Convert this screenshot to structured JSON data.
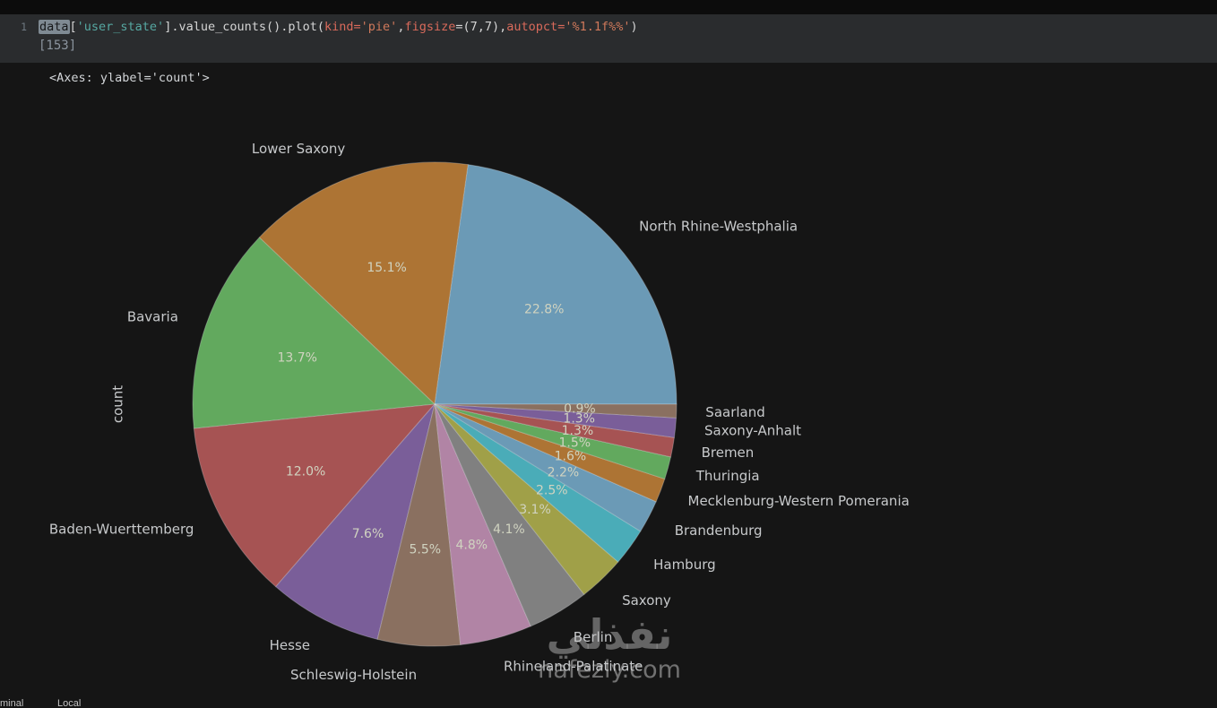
{
  "code_cell": {
    "line_number": "1",
    "execution_count": "[153]",
    "tokens": [
      {
        "text": "data",
        "cls": "tok-selected"
      },
      {
        "text": "[",
        "cls": "tok-plain"
      },
      {
        "text": "'user_state'",
        "cls": "tok-str-teal"
      },
      {
        "text": "].value_counts().plot(",
        "cls": "tok-plain"
      },
      {
        "text": "kind",
        "cls": "tok-kwarg"
      },
      {
        "text": "=",
        "cls": "tok-kwarg"
      },
      {
        "text": "'pie'",
        "cls": "tok-str"
      },
      {
        "text": ",",
        "cls": "tok-plain"
      },
      {
        "text": "figsize",
        "cls": "tok-kwarg"
      },
      {
        "text": "=(",
        "cls": "tok-plain"
      },
      {
        "text": "7,7",
        "cls": "tok-num"
      },
      {
        "text": "),",
        "cls": "tok-plain"
      },
      {
        "text": "autopct",
        "cls": "tok-kwarg"
      },
      {
        "text": "=",
        "cls": "tok-kwarg"
      },
      {
        "text": "'%1.1f%%'",
        "cls": "tok-str"
      },
      {
        "text": ")",
        "cls": "tok-plain"
      }
    ]
  },
  "output": {
    "repr": "<Axes: ylabel='count'>"
  },
  "chart_data": {
    "type": "pie",
    "title": "",
    "ylabel": "count",
    "start_angle": 0,
    "direction": "counterclockwise",
    "legend": false,
    "background": "#151515",
    "categories": [
      "North Rhine-Westphalia",
      "Lower Saxony",
      "Bavaria",
      "Baden-Wuerttemberg",
      "Hesse",
      "Schleswig-Holstein",
      "Rhineland-Palatinate",
      "Berlin",
      "Saxony",
      "Hamburg",
      "Brandenburg",
      "Mecklenburg-Western Pomerania",
      "Thuringia",
      "Bremen",
      "Saxony-Anhalt",
      "Saarland"
    ],
    "values": [
      22.8,
      15.1,
      13.7,
      12.0,
      7.6,
      5.5,
      4.8,
      4.1,
      3.1,
      2.5,
      2.2,
      1.6,
      1.5,
      1.3,
      1.3,
      0.9
    ],
    "autopct_labels": [
      "22.8%",
      "15.1%",
      "13.7%",
      "12.0%",
      "7.6%",
      "5.5%",
      "4.8%",
      "4.1%",
      "3.1%",
      "2.5%",
      "2.2%",
      "1.6%",
      "1.5%",
      "1.3%",
      "1.3%",
      "0.9%"
    ],
    "colors": [
      "#6b9ab6",
      "#ad7434",
      "#62a95e",
      "#a65353",
      "#7a5e99",
      "#8a7060",
      "#b184a5",
      "#808080",
      "#a0a048",
      "#4aacb8",
      "#6b9ab6",
      "#ad7434",
      "#62a95e",
      "#a65353",
      "#7a5e99",
      "#8a7060"
    ],
    "label_color": "#c7c9cb",
    "percent_color": "#d0d3c0"
  },
  "watermark": {
    "line1": "نفذلي",
    "line2": "nafezly.com"
  },
  "statusbar": {
    "terminal_fragment": "minal",
    "local_fragment": "Local"
  }
}
